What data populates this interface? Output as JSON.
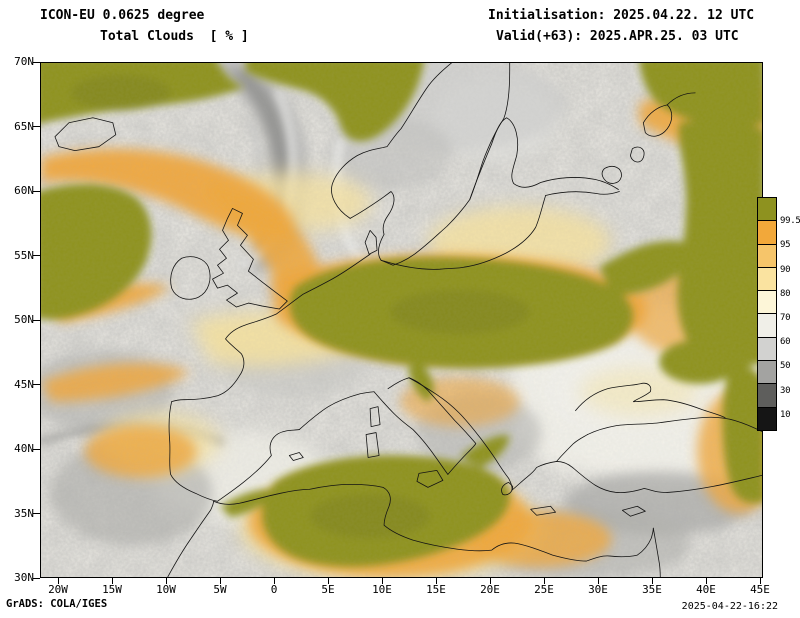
{
  "header": {
    "model": "ICON-EU 0.0625 degree",
    "variable": "Total Clouds  [ % ]",
    "initialisation": "Initialisation: 2025.04.22. 12 UTC",
    "valid": "Valid(+63): 2025.APR.25. 03 UTC"
  },
  "axes": {
    "lat_labels": [
      "70N",
      "65N",
      "60N",
      "55N",
      "50N",
      "45N",
      "40N",
      "35N",
      "30N"
    ],
    "lon_labels": [
      "20W",
      "15W",
      "10W",
      "5W",
      "0",
      "5E",
      "10E",
      "15E",
      "20E",
      "25E",
      "30E",
      "35E",
      "40E",
      "45E"
    ]
  },
  "colorbar": {
    "labels": [
      "99.5",
      "95",
      "90",
      "80",
      "70",
      "60",
      "50",
      "30",
      "10"
    ],
    "colors": [
      "#8e921f",
      "#f2a83a",
      "#f6c56a",
      "#fae3a0",
      "#fdf6d8",
      "#f0efe8",
      "#d2d2d0",
      "#a3a3a1",
      "#5e5e5c",
      "#151515"
    ]
  },
  "footer": {
    "credit": "GrADS: COLA/IGES",
    "timestamp": "2025-04-22-16:22"
  },
  "chart_data": {
    "type": "heatmap",
    "title": "Total Clouds [ % ]",
    "model": "ICON-EU 0.0625 degree",
    "initialisation": "2025.04.22. 12 UTC",
    "valid": "2025.APR.25. 03 UTC (+63 h)",
    "lon_range": [
      "20W",
      "45E"
    ],
    "lat_range": [
      "30N",
      "70N"
    ],
    "shade_levels_percent": [
      10,
      30,
      50,
      60,
      70,
      80,
      90,
      95,
      99.5
    ],
    "palette_top_to_bottom": [
      "#8e921f",
      "#f2a83a",
      "#f6c56a",
      "#fae3a0",
      "#fdf6d8",
      "#f0efe8",
      "#d2d2d0",
      "#a3a3a1",
      "#5e5e5c",
      "#151515"
    ],
    "legend_position": "right"
  }
}
